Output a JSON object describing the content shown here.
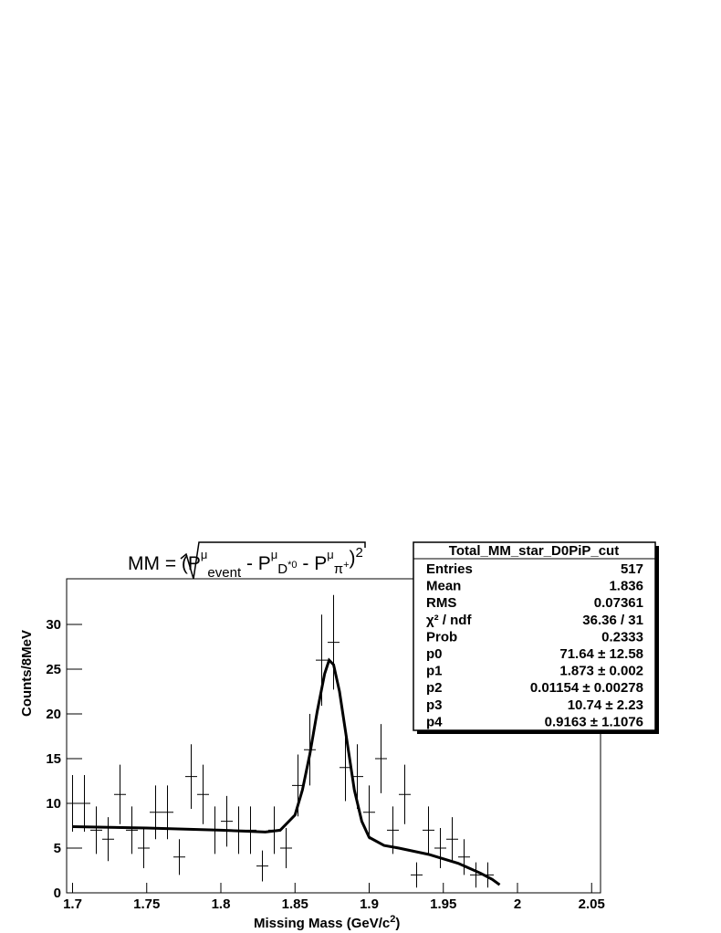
{
  "chart_data": {
    "type": "histogram",
    "title_parts": [
      "MM = ",
      "(P",
      "μ",
      "event",
      " - P",
      "μ",
      "D",
      "*0",
      " - P",
      "μ",
      "π",
      "+",
      ")",
      "2"
    ],
    "x_label_parts": [
      "Missing Mass (GeV/c",
      "2",
      ")"
    ],
    "y_label": "Counts/8MeV",
    "xlim": [
      1.696,
      2.056
    ],
    "ylim": [
      0,
      35.1
    ],
    "xticks": [
      1.7,
      1.75,
      1.8,
      1.85,
      1.9,
      1.95,
      2,
      2.05
    ],
    "yticks": [
      0,
      5,
      10,
      15,
      20,
      25,
      30
    ],
    "bin_width": 0.008,
    "color": "#000000",
    "x": [
      1.7,
      1.708,
      1.716,
      1.724,
      1.732,
      1.74,
      1.748,
      1.756,
      1.764,
      1.772,
      1.78,
      1.788,
      1.796,
      1.804,
      1.812,
      1.82,
      1.828,
      1.836,
      1.844,
      1.852,
      1.86,
      1.868,
      1.876,
      1.884,
      1.892,
      1.9,
      1.908,
      1.916,
      1.924,
      1.932,
      1.94,
      1.948,
      1.956,
      1.964,
      1.972,
      1.98
    ],
    "values": [
      10,
      10,
      7,
      6,
      11,
      7,
      5,
      9,
      9,
      4,
      13,
      11,
      7,
      8,
      7,
      7,
      3,
      7,
      5,
      12,
      16,
      26,
      28,
      14,
      13,
      9,
      15,
      7,
      11,
      2,
      7,
      5,
      6,
      4,
      2,
      2
    ],
    "errors": [
      3.16,
      3.16,
      2.65,
      2.45,
      3.32,
      2.65,
      2.24,
      3,
      3,
      2,
      3.61,
      3.32,
      2.65,
      2.83,
      2.65,
      2.65,
      1.73,
      2.65,
      2.24,
      3.46,
      4,
      5.1,
      5.29,
      3.74,
      3.61,
      3,
      3.87,
      2.65,
      3.32,
      1.41,
      2.65,
      2.24,
      2.45,
      2,
      1.41,
      1.41
    ],
    "fit": {
      "x": [
        1.7,
        1.75,
        1.8,
        1.83,
        1.84,
        1.85,
        1.855,
        1.86,
        1.865,
        1.87,
        1.873,
        1.876,
        1.88,
        1.885,
        1.89,
        1.895,
        1.9,
        1.91,
        1.92,
        1.94,
        1.96,
        1.975,
        1.983,
        1.988
      ],
      "y": [
        7.4,
        7.25,
        7.0,
        6.8,
        7.0,
        8.7,
        11.5,
        15.5,
        20.3,
        24.5,
        26,
        25.5,
        22.5,
        17,
        11.5,
        8,
        6.2,
        5.3,
        5.0,
        4.3,
        3.3,
        2.2,
        1.5,
        0.9
      ]
    },
    "stats": {
      "title": "Total_MM_star_D0PiP_cut",
      "rows": [
        [
          "Entries",
          "517"
        ],
        [
          "Mean",
          "1.836"
        ],
        [
          "RMS",
          "0.07361"
        ],
        [
          "χ² / ndf",
          "36.36 / 31"
        ],
        [
          "Prob",
          "0.2333"
        ],
        [
          "p0",
          "71.64 ± 12.58"
        ],
        [
          "p1",
          "1.873 ± 0.002"
        ],
        [
          "p2",
          "0.01154 ± 0.00278"
        ],
        [
          "p3",
          "10.74 ± 2.23"
        ],
        [
          "p4",
          "0.9163 ± 1.1076"
        ]
      ]
    }
  }
}
